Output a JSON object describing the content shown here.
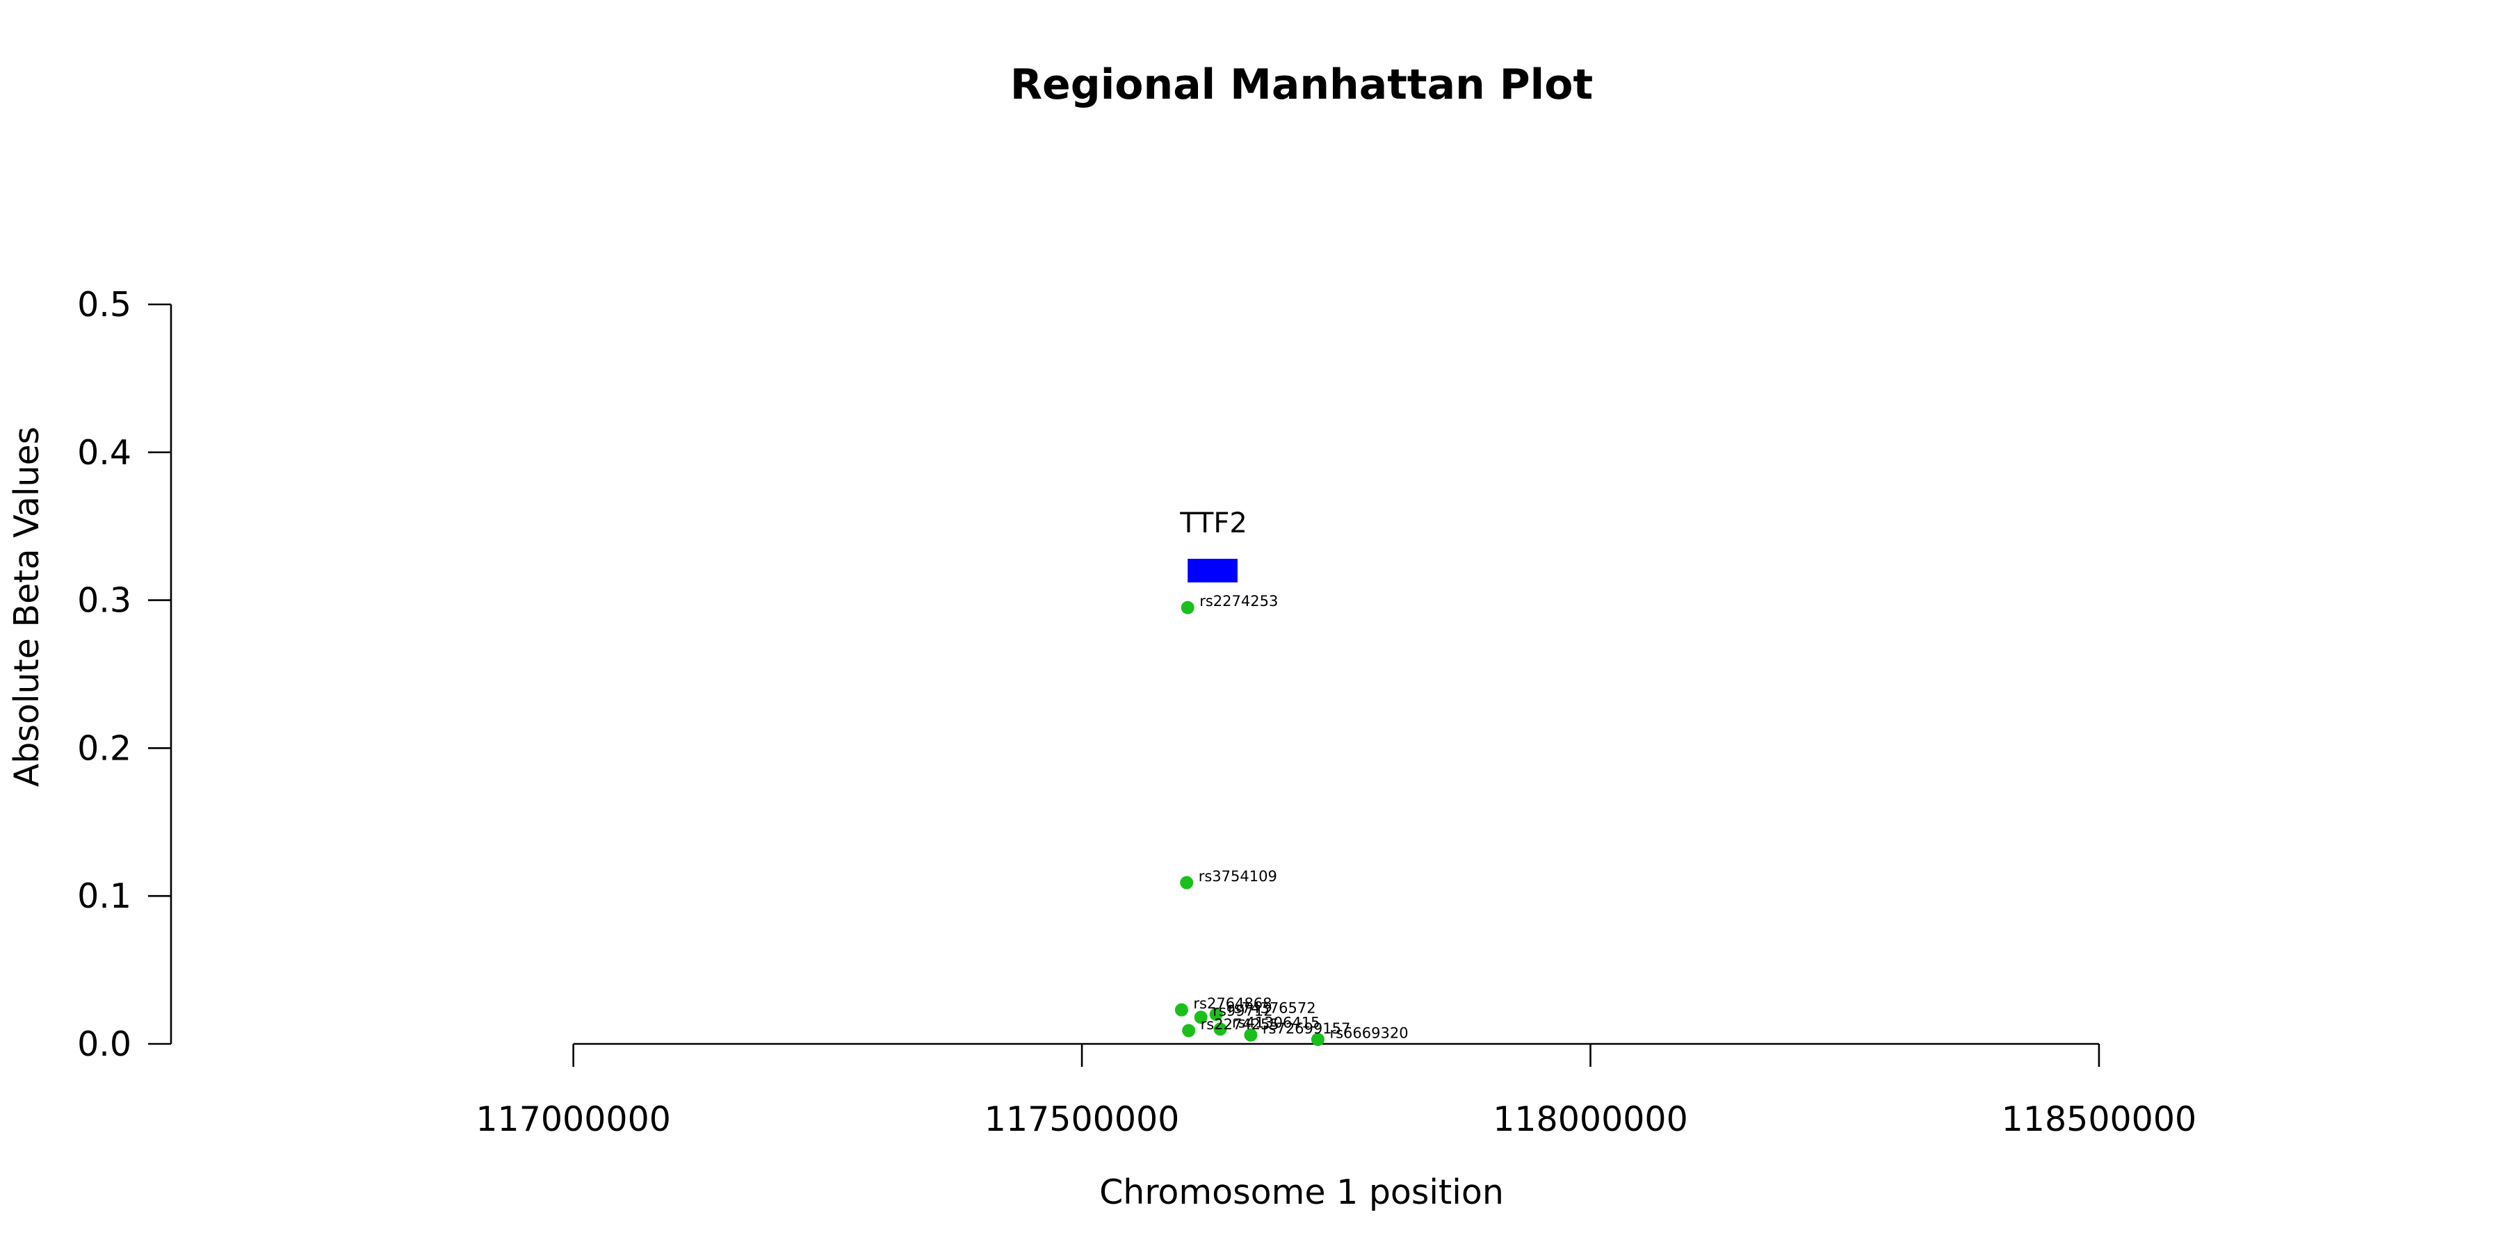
{
  "chart_data": {
    "type": "scatter",
    "title": "Regional Manhattan Plot",
    "xlabel": "Chromosome 1 position",
    "ylabel": "Absolute Beta Values",
    "xlim": [
      116600000,
      118700000
    ],
    "ylim": [
      0,
      0.5
    ],
    "x_ticks": [
      117000000,
      117500000,
      118000000,
      118500000
    ],
    "y_ticks": [
      0.0,
      0.1,
      0.2,
      0.3,
      0.4,
      0.5
    ],
    "x_tick_labels": [
      "117000000",
      "117500000",
      "118000000",
      "118500000"
    ],
    "y_tick_labels": [
      "0.0",
      "0.1",
      "0.2",
      "0.3",
      "0.4",
      "0.5"
    ],
    "grid": false,
    "point_color": "#1bbf1b",
    "points": [
      {
        "label": "rs2274253",
        "x": 117604000,
        "y": 0.295
      },
      {
        "label": "rs3754109",
        "x": 117603000,
        "y": 0.109
      },
      {
        "label": "rs2764868",
        "x": 117598000,
        "y": 0.023
      },
      {
        "label": "rs99712",
        "x": 117617000,
        "y": 0.018
      },
      {
        "label": "rs74376572",
        "x": 117632000,
        "y": 0.02
      },
      {
        "label": "rs2274255",
        "x": 117605000,
        "y": 0.009
      },
      {
        "label": "rs41306415",
        "x": 117636000,
        "y": 0.01
      },
      {
        "label": "rs72699157",
        "x": 117666000,
        "y": 0.006
      },
      {
        "label": "rs6669320",
        "x": 117732000,
        "y": 0.003
      }
    ],
    "genes": [
      {
        "name": "TTF2",
        "start": 117604000,
        "end": 117653000,
        "y": 0.32,
        "color": "#0000ff"
      }
    ]
  }
}
